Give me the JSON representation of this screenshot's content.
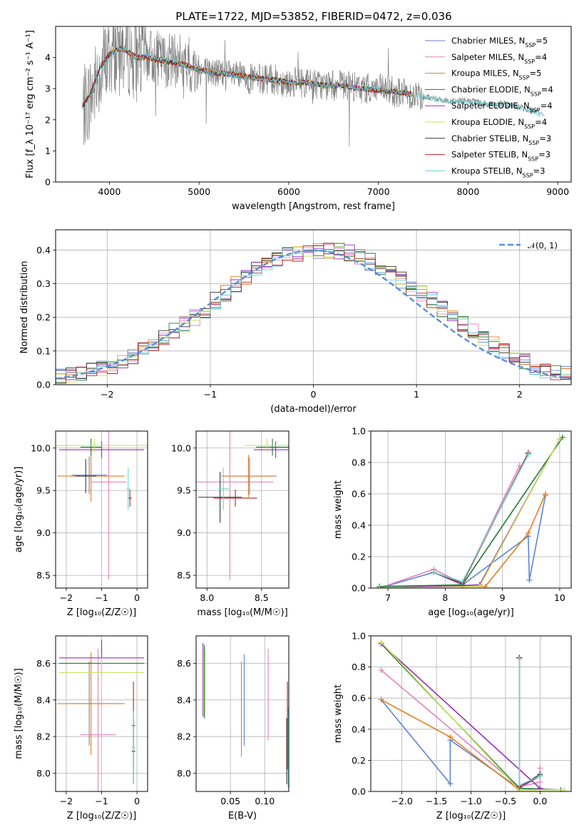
{
  "figure": {
    "title": "PLATE=1722, MJD=53852, FIBERID=0472, z=0.036"
  },
  "colors": {
    "Chabrier MILES": "#5b84d6",
    "Salpeter MILES": "#e383b8",
    "Kroupa MILES": "#e67e22",
    "Chabrier ELODIE": "#1f7a3a",
    "Salpeter ELODIE": "#9b2bbd",
    "Kroupa ELODIE": "#c8e35a",
    "Chabrier STELIB": "#333333",
    "Salpeter STELIB": "#b22222",
    "Kroupa STELIB": "#6dd3d8",
    "data": "#808080"
  },
  "chart_data": [
    {
      "id": "spectrum",
      "type": "line",
      "xlabel": "wavelength [Angstrom, rest frame]",
      "ylabel": "Flux [f_λ 10⁻¹⁷ erg cm⁻² s⁻¹ A⁻¹]",
      "xlim": [
        3400,
        9150
      ],
      "ylim": [
        0,
        5
      ],
      "xticks": [
        4000,
        5000,
        6000,
        7000,
        8000,
        9000
      ],
      "yticks": [
        0,
        1,
        2,
        3,
        4
      ],
      "legend_loc": "upper right",
      "data_x": [
        3700,
        3800,
        3900,
        4000,
        4100,
        4200,
        4300,
        4400,
        4500,
        4600,
        4700,
        4800,
        4900,
        5000,
        5200,
        5400,
        5600,
        5800,
        6000,
        6200,
        6400,
        6600,
        6800,
        7000,
        7200,
        7400,
        7600,
        7800,
        8000,
        8200,
        8400,
        8600,
        8800
      ],
      "data_y": [
        2.3,
        2.8,
        3.6,
        4.0,
        4.3,
        4.2,
        3.9,
        4.1,
        4.0,
        3.9,
        3.9,
        3.8,
        3.6,
        3.6,
        3.5,
        3.4,
        3.3,
        3.3,
        3.2,
        3.2,
        3.1,
        3.1,
        3.0,
        3.0,
        2.9,
        2.8,
        2.7,
        2.6,
        2.6,
        2.5,
        2.5,
        2.4,
        2.2
      ],
      "model_x": [
        3700,
        3800,
        3900,
        4000,
        4100,
        4200,
        4300,
        4400,
        4600,
        4800,
        5000,
        5200,
        5400,
        5600,
        5800,
        6000,
        6200,
        6400,
        6600,
        6800,
        7000,
        7200,
        7400
      ],
      "model_y": [
        2.4,
        2.9,
        3.7,
        4.1,
        4.3,
        4.2,
        4.0,
        4.0,
        3.9,
        3.8,
        3.6,
        3.5,
        3.45,
        3.35,
        3.3,
        3.2,
        3.2,
        3.1,
        3.1,
        3.0,
        2.95,
        2.9,
        2.8
      ],
      "series": [
        {
          "name": "Chabrier MILES, N",
          "sub": "SSP",
          "tail": "=5"
        },
        {
          "name": "Salpeter MILES, N",
          "sub": "SSP",
          "tail": "=4"
        },
        {
          "name": "Kroupa MILES, N",
          "sub": "SSP",
          "tail": "=5"
        },
        {
          "name": "Chabrier ELODIE, N",
          "sub": "SSP",
          "tail": "=4"
        },
        {
          "name": "Salpeter ELODIE, N",
          "sub": "SSP",
          "tail": "=4"
        },
        {
          "name": "Kroupa ELODIE, N",
          "sub": "SSP",
          "tail": "=4"
        },
        {
          "name": "Chabrier STELIB, N",
          "sub": "SSP",
          "tail": "=3"
        },
        {
          "name": "Salpeter STELIB, N",
          "sub": "SSP",
          "tail": "=3"
        },
        {
          "name": "Kroupa STELIB, N",
          "sub": "SSP",
          "tail": "=3"
        }
      ]
    },
    {
      "id": "residuals",
      "type": "line",
      "xlabel": "(data-model)/error",
      "ylabel": "Normed distribution",
      "xlim": [
        -2.5,
        2.5
      ],
      "ylim": [
        0,
        0.46
      ],
      "xticks": [
        -2,
        -1,
        0,
        1,
        2
      ],
      "xticklabels": [
        "−2",
        "−1",
        "0",
        "1",
        "2"
      ],
      "yticks": [
        0.0,
        0.1,
        0.2,
        0.3,
        0.4
      ],
      "yticklabels": [
        "0.0",
        "0.1",
        "0.2",
        "0.3",
        "0.4"
      ],
      "grid": true,
      "legend_label": "𝒩(0, 1)",
      "legend_loc": "upper right",
      "bin_width": 0.1,
      "base_hist": [
        0.025,
        0.03,
        0.035,
        0.04,
        0.05,
        0.055,
        0.07,
        0.085,
        0.1,
        0.12,
        0.14,
        0.16,
        0.18,
        0.2,
        0.22,
        0.25,
        0.27,
        0.3,
        0.32,
        0.34,
        0.36,
        0.375,
        0.385,
        0.39,
        0.395,
        0.4,
        0.398,
        0.395,
        0.39,
        0.38,
        0.365,
        0.35,
        0.33,
        0.31,
        0.29,
        0.27,
        0.25,
        0.225,
        0.2,
        0.18,
        0.16,
        0.14,
        0.12,
        0.1,
        0.085,
        0.07,
        0.055,
        0.045,
        0.035,
        0.03
      ]
    },
    {
      "id": "age-vs-Z",
      "type": "scatter",
      "xlabel": "Z [log₁₀(Z/Z☉)]",
      "ylabel": "age  [log₁₀(age/yr)]",
      "xlim": [
        -2.3,
        0.3
      ],
      "ylim": [
        8.35,
        10.2
      ],
      "xticks": [
        -2,
        -1,
        0
      ],
      "xticklabels": [
        "−2",
        "−1",
        "0"
      ],
      "yticks": [
        8.5,
        9.0,
        9.5,
        10.0
      ],
      "yticklabels": [
        "8.5",
        "9.0",
        "9.5",
        "10.0"
      ],
      "grid": true,
      "points": [
        {
          "s": "Chabrier MILES",
          "x": -1.35,
          "y": 9.68,
          "xerr": 0.5,
          "yerr": 0.22
        },
        {
          "s": "Salpeter MILES",
          "x": -0.8,
          "y": 9.6,
          "xerr": 0.5,
          "yerr": 1.15
        },
        {
          "s": "Kroupa MILES",
          "x": -1.3,
          "y": 9.67,
          "xerr": 0.95,
          "yerr": 0.3
        },
        {
          "s": "Chabrier ELODIE",
          "x": -1.3,
          "y": 10.01,
          "xerr": 0.3,
          "yerr": 0.1
        },
        {
          "s": "Salpeter ELODIE",
          "x": -1.0,
          "y": 9.98,
          "xerr": 1.2,
          "yerr": 0.1
        },
        {
          "s": "Kroupa ELODIE",
          "x": -1.2,
          "y": 10.03,
          "xerr": 1.5,
          "yerr": 0.08
        },
        {
          "s": "Chabrier STELIB",
          "x": -1.45,
          "y": 9.67,
          "xerr": 0.3,
          "yerr": 0.2
        },
        {
          "s": "Salpeter STELIB",
          "x": -0.2,
          "y": 9.41,
          "xerr": 0.05,
          "yerr": 0.1
        },
        {
          "s": "Kroupa STELIB",
          "x": -0.25,
          "y": 9.52,
          "xerr": 0.05,
          "yerr": 0.25
        }
      ]
    },
    {
      "id": "age-vs-mass",
      "type": "scatter",
      "xlabel": "mass [log₁₀(M/M☉)]",
      "ylabel": "",
      "xlim": [
        7.9,
        8.75
      ],
      "ylim": [
        8.35,
        10.2
      ],
      "xticks": [
        8.0,
        8.5
      ],
      "xticklabels": [
        "8.0",
        "8.5"
      ],
      "yticks": [
        8.5,
        9.0,
        9.5,
        10.0
      ],
      "yticklabels": [
        "8.5",
        "9.0",
        "9.5",
        "10.0"
      ],
      "grid": true,
      "points": [
        {
          "s": "Chabrier MILES",
          "x": 8.39,
          "y": 9.67,
          "xerr": 0.25,
          "yerr": 0.22
        },
        {
          "s": "Salpeter MILES",
          "x": 8.21,
          "y": 9.6,
          "xerr": 0.4,
          "yerr": 1.15
        },
        {
          "s": "Kroupa MILES",
          "x": 8.38,
          "y": 9.67,
          "xerr": 0.25,
          "yerr": 0.25
        },
        {
          "s": "Chabrier ELODIE",
          "x": 8.6,
          "y": 10.01,
          "xerr": 0.15,
          "yerr": 0.1
        },
        {
          "s": "Salpeter ELODIE",
          "x": 8.63,
          "y": 9.98,
          "xerr": 0.2,
          "yerr": 0.1
        },
        {
          "s": "Kroupa ELODIE",
          "x": 8.55,
          "y": 10.03,
          "xerr": 0.2,
          "yerr": 0.08
        },
        {
          "s": "Chabrier STELIB",
          "x": 8.12,
          "y": 9.42,
          "xerr": 0.2,
          "yerr": 0.3
        },
        {
          "s": "Salpeter STELIB",
          "x": 8.26,
          "y": 9.41,
          "xerr": 0.2,
          "yerr": 0.1
        },
        {
          "s": "Kroupa STELIB",
          "x": 8.15,
          "y": 9.52,
          "xerr": 0.05,
          "yerr": 0.25
        }
      ]
    },
    {
      "id": "massweight-vs-age",
      "type": "line",
      "xlabel": "age  [log₁₀(age/yr)]",
      "ylabel": "mass weight",
      "xlim": [
        6.7,
        10.2
      ],
      "ylim": [
        0,
        1.0
      ],
      "xticks": [
        7,
        8,
        9,
        10
      ],
      "xticklabels": [
        "7",
        "8",
        "9",
        "10"
      ],
      "yticks": [
        0.0,
        0.2,
        0.4,
        0.6,
        0.8,
        1.0
      ],
      "yticklabels": [
        "0.0",
        "0.2",
        "0.4",
        "0.6",
        "0.8",
        "1.0"
      ],
      "grid": true,
      "series": [
        {
          "s": "Chabrier MILES",
          "x": [
            6.85,
            7.8,
            8.3,
            9.45,
            9.47,
            9.75
          ],
          "y": [
            0.0,
            0.1,
            0.02,
            0.33,
            0.05,
            0.59
          ]
        },
        {
          "s": "Salpeter MILES",
          "x": [
            6.85,
            7.8,
            8.3,
            9.3
          ],
          "y": [
            0.0,
            0.12,
            0.03,
            0.78
          ]
        },
        {
          "s": "Kroupa MILES",
          "x": [
            6.85,
            8.3,
            8.7,
            9.45,
            9.75
          ],
          "y": [
            0.0,
            0.01,
            0.01,
            0.35,
            0.6
          ]
        },
        {
          "s": "Chabrier ELODIE",
          "x": [
            6.85,
            8.3,
            10.05
          ],
          "y": [
            0.01,
            0.02,
            0.96
          ]
        },
        {
          "s": "Salpeter ELODIE",
          "x": [
            6.85,
            8.6,
            10.0
          ],
          "y": [
            0.0,
            0.02,
            0.95
          ]
        },
        {
          "s": "Kroupa ELODIE",
          "x": [
            6.85,
            8.6,
            10.0
          ],
          "y": [
            0.0,
            0.01,
            0.95
          ]
        },
        {
          "s": "Chabrier STELIB",
          "x": [
            7.8,
            8.3,
            9.45
          ],
          "y": [
            0.1,
            0.03,
            0.86
          ]
        },
        {
          "s": "Salpeter STELIB",
          "x": [
            7.8,
            8.3,
            9.45
          ],
          "y": [
            0.1,
            0.03,
            0.86
          ]
        },
        {
          "s": "Kroupa STELIB",
          "x": [
            7.8,
            8.3,
            9.45
          ],
          "y": [
            0.1,
            0.04,
            0.85
          ]
        }
      ]
    },
    {
      "id": "mass-vs-Z",
      "type": "scatter",
      "xlabel": "Z [log₁₀(Z/Z☉)]",
      "ylabel": "mass [log₁₀(M/M☉)]",
      "xlim": [
        -2.3,
        0.3
      ],
      "ylim": [
        7.9,
        8.75
      ],
      "xticks": [
        -2,
        -1,
        0
      ],
      "xticklabels": [
        "−2",
        "−1",
        "0"
      ],
      "yticks": [
        8.0,
        8.2,
        8.4,
        8.6
      ],
      "yticklabels": [
        "8.0",
        "8.2",
        "8.4",
        "8.6"
      ],
      "grid": true,
      "points": [
        {
          "s": "Chabrier MILES",
          "x": -1.35,
          "y": 8.38,
          "xerr": 0.6,
          "yerr": 0.23
        },
        {
          "s": "Salpeter MILES",
          "x": -1.1,
          "y": 8.21,
          "xerr": 0.5,
          "yerr": 0.47
        },
        {
          "s": "Kroupa MILES",
          "x": -1.3,
          "y": 8.38,
          "xerr": 0.95,
          "yerr": 0.28
        },
        {
          "s": "Chabrier ELODIE",
          "x": -1.0,
          "y": 8.6,
          "xerr": 1.2,
          "yerr": 0.1
        },
        {
          "s": "Salpeter ELODIE",
          "x": -1.0,
          "y": 8.63,
          "xerr": 1.2,
          "yerr": 0.1
        },
        {
          "s": "Kroupa ELODIE",
          "x": -1.0,
          "y": 8.55,
          "xerr": 1.2,
          "yerr": 0.08
        },
        {
          "s": "Chabrier STELIB",
          "x": -0.1,
          "y": 8.12,
          "xerr": 0.05,
          "yerr": 0.18
        },
        {
          "s": "Salpeter STELIB",
          "x": -0.1,
          "y": 8.26,
          "xerr": 0.05,
          "yerr": 0.24
        },
        {
          "s": "Kroupa STELIB",
          "x": -0.1,
          "y": 8.14,
          "xerr": 0.05,
          "yerr": 0.2
        }
      ]
    },
    {
      "id": "mass-vs-ebv",
      "type": "scatter",
      "xlabel": "E(B-V)",
      "ylabel": "",
      "xlim": [
        0.0,
        0.135
      ],
      "ylim": [
        7.9,
        8.75
      ],
      "xticks": [
        0.05,
        0.1
      ],
      "xticklabels": [
        "0.05",
        "0.10"
      ],
      "yticks": [
        8.0,
        8.2,
        8.4,
        8.6
      ],
      "yticklabels": [
        "8.0",
        "8.2",
        "8.4",
        "8.6"
      ],
      "grid": true,
      "points": [
        {
          "s": "Chabrier MILES",
          "x": 0.07,
          "y": 8.4,
          "yerr": 0.25
        },
        {
          "s": "Salpeter MILES",
          "x": 0.105,
          "y": 8.43,
          "yerr": 0.25
        },
        {
          "s": "Kroupa MILES",
          "x": 0.066,
          "y": 8.35,
          "yerr": 0.26
        },
        {
          "s": "Chabrier ELODIE",
          "x": 0.012,
          "y": 8.5,
          "yerr": 0.2
        },
        {
          "s": "Salpeter ELODIE",
          "x": 0.01,
          "y": 8.51,
          "yerr": 0.2
        },
        {
          "s": "Kroupa ELODIE",
          "x": 0.013,
          "y": 8.5,
          "yerr": 0.18
        },
        {
          "s": "Chabrier STELIB",
          "x": 0.132,
          "y": 8.12,
          "yerr": 0.18
        },
        {
          "s": "Salpeter STELIB",
          "x": 0.133,
          "y": 8.26,
          "yerr": 0.24
        },
        {
          "s": "Kroupa STELIB",
          "x": 0.134,
          "y": 8.14,
          "yerr": 0.22
        }
      ]
    },
    {
      "id": "massweight-vs-Z",
      "type": "line",
      "xlabel": "Z [log₁₀(Z/Z☉)]",
      "ylabel": "mass weight",
      "xlim": [
        -2.45,
        0.45
      ],
      "ylim": [
        0,
        1.0
      ],
      "xticks": [
        -2.0,
        -1.5,
        -1.0,
        -0.5,
        0.0
      ],
      "xticklabels": [
        "−2.0",
        "−1.5",
        "−1.0",
        "−0.5",
        "0.0"
      ],
      "yticks": [
        0.0,
        0.2,
        0.4,
        0.6,
        0.8,
        1.0
      ],
      "yticklabels": [
        "0.0",
        "0.2",
        "0.4",
        "0.6",
        "0.8",
        "1.0"
      ],
      "grid": true,
      "series": [
        {
          "s": "Chabrier MILES",
          "x": [
            -2.3,
            -1.3,
            -1.3,
            -0.3,
            0.0
          ],
          "y": [
            0.59,
            0.05,
            0.33,
            0.02,
            0.1
          ]
        },
        {
          "s": "Salpeter MILES",
          "x": [
            -2.3,
            -0.3,
            0.0,
            0.0
          ],
          "y": [
            0.78,
            0.03,
            0.06,
            0.15
          ]
        },
        {
          "s": "Kroupa MILES",
          "x": [
            -2.3,
            -1.3,
            -0.3,
            0.0
          ],
          "y": [
            0.59,
            0.35,
            0.01,
            0.01
          ]
        },
        {
          "s": "Chabrier ELODIE",
          "x": [
            -2.3,
            -0.3,
            0.3
          ],
          "y": [
            0.95,
            0.02,
            0.01
          ]
        },
        {
          "s": "Salpeter ELODIE",
          "x": [
            -2.3,
            0.0
          ],
          "y": [
            0.95,
            0.02
          ]
        },
        {
          "s": "Kroupa ELODIE",
          "x": [
            -2.3,
            -0.3,
            0.35
          ],
          "y": [
            0.96,
            0.01,
            0.01
          ]
        },
        {
          "s": "Chabrier STELIB",
          "x": [
            -0.3,
            -0.3,
            0.0
          ],
          "y": [
            0.86,
            0.03,
            0.11
          ]
        },
        {
          "s": "Salpeter STELIB",
          "x": [
            -0.3,
            -0.3,
            0.0
          ],
          "y": [
            0.86,
            0.03,
            0.1
          ]
        },
        {
          "s": "Kroupa STELIB",
          "x": [
            -0.3,
            -0.3,
            0.0
          ],
          "y": [
            0.85,
            0.04,
            0.1
          ]
        }
      ]
    }
  ]
}
